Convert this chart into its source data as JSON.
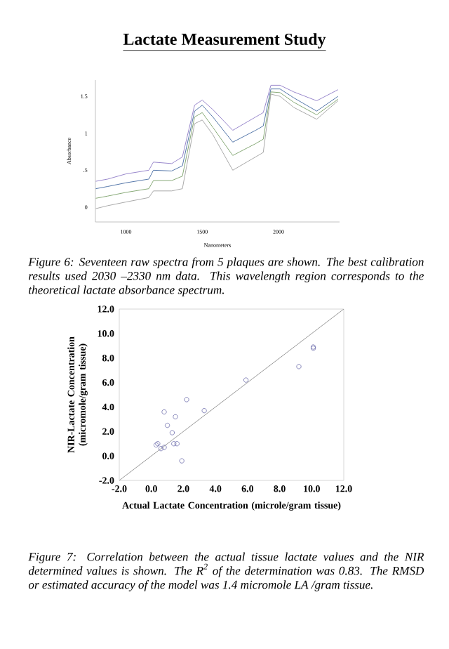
{
  "chart_data": [
    {
      "type": "line",
      "title": "Lactate Measurement Study",
      "xlabel": "Nanometers",
      "ylabel": "Absorbance",
      "annotations": [
        "Figure 6: Seventeen raw spectra from 5 plaques are shown. The best calibration results used 2030 –2330 nm data. This wavelength region corresponds to the theoretical lactate absorbance spectrum."
      ],
      "x": [
        802,
        880,
        1000,
        1150,
        1180,
        1300,
        1370,
        1450,
        1500,
        1570,
        1700,
        1850,
        1900,
        1950,
        2010,
        2100,
        2250,
        2390
      ],
      "series": [
        {
          "color": "#9988cc",
          "values": [
            0.35,
            0.38,
            0.45,
            0.5,
            0.61,
            0.59,
            0.68,
            1.38,
            1.45,
            1.32,
            1.04,
            1.22,
            1.28,
            1.65,
            1.65,
            1.56,
            1.44,
            1.59
          ]
        },
        {
          "color": "#5577aa",
          "values": [
            0.25,
            0.28,
            0.33,
            0.38,
            0.5,
            0.49,
            0.56,
            1.3,
            1.38,
            1.22,
            0.88,
            1.04,
            1.1,
            1.6,
            1.6,
            1.48,
            1.3,
            1.5
          ]
        },
        {
          "color": "#88aa77",
          "values": [
            0.12,
            0.15,
            0.2,
            0.25,
            0.36,
            0.36,
            0.42,
            1.22,
            1.28,
            1.08,
            0.7,
            0.86,
            0.92,
            1.56,
            1.55,
            1.42,
            1.25,
            1.46
          ]
        },
        {
          "color": "#aaaaaa",
          "values": [
            -0.02,
            0.02,
            0.07,
            0.13,
            0.22,
            0.22,
            0.25,
            1.13,
            1.18,
            0.98,
            0.5,
            0.68,
            0.74,
            1.53,
            1.5,
            1.35,
            1.19,
            1.44
          ]
        }
      ],
      "xlim": [
        800,
        2400
      ],
      "ylim": [
        -0.2,
        1.72
      ],
      "xticks": [
        1000,
        1500,
        2000
      ],
      "yticks": [
        0,
        {
          "value": 0.5,
          "label": ".5"
        },
        1,
        1.5
      ],
      "marker": "none",
      "line_style": "solid",
      "grid": false
    },
    {
      "type": "scatter",
      "xlabel": "Actual Lactate Concentration (microle/gram tissue)",
      "ylabel": "NIR-Lactate Concentration (micromole/gram tissue)",
      "annotations": [
        "Figure 7: Correlation between the actual tissue lactate values and the NIR determined values is shown. The R$^{2}$ of the determination was 0.83. The RMSD or estimated accuracy of the model was 1.4 micromole LA /gram tissue."
      ],
      "series": [
        {
          "type": "scatter",
          "color": "#6a6aaa",
          "marker": "circle",
          "x": [
            0.3,
            0.4,
            0.6,
            0.8,
            0.8,
            1.0,
            1.3,
            1.4,
            1.5,
            1.6,
            1.9,
            2.2,
            3.3,
            5.9,
            9.2,
            10.1,
            10.1
          ],
          "values": [
            0.9,
            1.0,
            0.6,
            0.7,
            3.6,
            2.5,
            1.9,
            1.0,
            3.2,
            1.0,
            -0.4,
            4.6,
            3.7,
            6.2,
            7.3,
            8.9,
            8.8
          ]
        },
        {
          "type": "line",
          "color": "#999999",
          "x": [
            -2,
            12
          ],
          "values": [
            -2,
            12
          ]
        }
      ],
      "xlim": [
        -2,
        12
      ],
      "ylim": [
        -2,
        12
      ],
      "xticks": [
        {
          "value": -2,
          "label": "-2.0"
        },
        {
          "value": 0,
          "label": "0.0"
        },
        {
          "value": 2,
          "label": "2.0"
        },
        {
          "value": 4,
          "label": "4.0"
        },
        {
          "value": 6,
          "label": "6.0"
        },
        {
          "value": 8,
          "label": "8.0"
        },
        {
          "value": 10,
          "label": "10.0"
        },
        {
          "value": 12,
          "label": "12.0"
        }
      ],
      "yticks": [
        {
          "value": -2,
          "label": "-2.0"
        },
        {
          "value": 0,
          "label": "0.0"
        },
        {
          "value": 2,
          "label": "2.0"
        },
        {
          "value": 4,
          "label": "4.0"
        },
        {
          "value": 6,
          "label": "6.0"
        },
        {
          "value": 8,
          "label": "8.0"
        },
        {
          "value": 10,
          "label": "10.0"
        },
        {
          "value": 12,
          "label": "12.0"
        }
      ],
      "grid": false
    }
  ]
}
